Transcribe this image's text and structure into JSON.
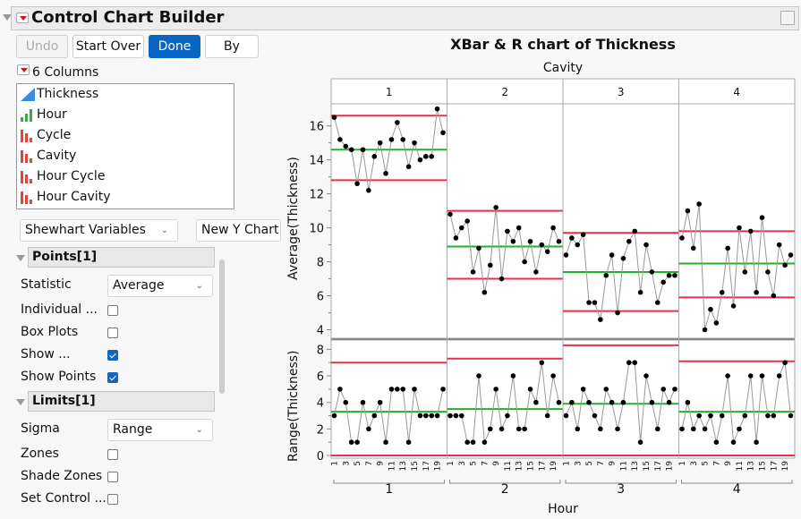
{
  "window": {
    "title": "Control Chart Builder"
  },
  "toolbar": {
    "undo": "Undo",
    "start_over": "Start Over",
    "done": "Done",
    "by": "By"
  },
  "columns": {
    "header": "6 Columns",
    "items": [
      {
        "label": "Thickness",
        "type": "continuous"
      },
      {
        "label": "Hour",
        "type": "ordinal"
      },
      {
        "label": "Cycle",
        "type": "nominal"
      },
      {
        "label": "Cavity",
        "type": "nominal"
      },
      {
        "label": "Hour Cycle",
        "type": "nominal"
      },
      {
        "label": "Hour Cavity",
        "type": "nominal"
      }
    ]
  },
  "chart_type": "Shewhart Variables",
  "new_y_chart": "New Y Chart",
  "points": {
    "header": "Points[1]",
    "statistic_label": "Statistic",
    "statistic_value": "Average",
    "options": [
      {
        "label": "Individual ...",
        "checked": false
      },
      {
        "label": "Box Plots",
        "checked": false
      },
      {
        "label": "Show ...",
        "checked": true
      },
      {
        "label": "Show Points",
        "checked": true
      }
    ]
  },
  "limits": {
    "header": "Limits[1]",
    "sigma_label": "Sigma",
    "sigma_value": "Range",
    "options": [
      {
        "label": "Zones",
        "checked": false
      },
      {
        "label": "Shade Zones",
        "checked": false
      },
      {
        "label": "Set Control ...",
        "checked": false
      }
    ]
  },
  "colors": {
    "ucl_lcl": "#e8304a",
    "center": "#22b02a",
    "points": "#000000",
    "lines": "#999999",
    "accent": "#0a66c2"
  },
  "chart_data": {
    "type": "line",
    "title": "XBar & R chart of Thickness",
    "group_label": "Cavity",
    "xlabel": "Hour",
    "x_ticks": [
      "1",
      "3",
      "5",
      "7",
      "9",
      "11",
      "13",
      "15",
      "17",
      "19"
    ],
    "groups": [
      "1",
      "2",
      "3",
      "4"
    ],
    "average": {
      "ylabel": "Average(Thickness)",
      "ylim": [
        3.5,
        17.3
      ],
      "yticks": [
        4,
        6,
        8,
        10,
        12,
        14,
        16
      ],
      "series": [
        {
          "values": [
            16.5,
            15.2,
            14.8,
            14.6,
            12.6,
            14.6,
            12.2,
            14.2,
            15.0,
            13.2,
            15.2,
            16.2,
            15.2,
            13.6,
            15.0,
            14.0,
            14.2,
            14.2,
            17.0,
            15.6
          ],
          "ucl": 16.6,
          "cl": 14.6,
          "lcl": 12.8
        },
        {
          "values": [
            10.8,
            9.4,
            10.0,
            10.4,
            7.4,
            8.8,
            6.2,
            7.8,
            11.2,
            7.0,
            9.8,
            9.2,
            10.0,
            8.0,
            9.2,
            7.4,
            9.0,
            8.6,
            10.0,
            9.2
          ],
          "ucl": 11.0,
          "cl": 8.9,
          "lcl": 7.0
        },
        {
          "values": [
            8.4,
            9.4,
            9.0,
            9.6,
            5.6,
            5.6,
            4.6,
            7.2,
            8.4,
            5.0,
            8.2,
            9.2,
            9.8,
            6.2,
            9.0,
            7.4,
            5.6,
            6.8,
            7.2,
            7.2
          ],
          "ucl": 9.7,
          "cl": 7.4,
          "lcl": 5.1
        },
        {
          "values": [
            9.4,
            11.0,
            8.8,
            11.4,
            4.0,
            5.2,
            4.4,
            6.2,
            8.8,
            5.4,
            10.0,
            7.4,
            9.8,
            6.2,
            10.6,
            7.4,
            6.0,
            9.0,
            7.8,
            8.4
          ],
          "ucl": 9.8,
          "cl": 7.9,
          "lcl": 5.9
        }
      ]
    },
    "range": {
      "ylabel": "Range(Thickness)",
      "ylim": [
        -0.2,
        8.7
      ],
      "yticks": [
        0,
        2,
        4,
        6,
        8
      ],
      "series": [
        {
          "values": [
            3,
            5,
            4,
            1,
            1,
            4,
            2,
            3,
            4,
            1,
            5,
            5,
            5,
            1,
            5,
            3,
            3,
            3,
            3,
            5
          ],
          "ucl": 7.0,
          "cl": 3.3,
          "lcl": 0
        },
        {
          "values": [
            3,
            3,
            3,
            1,
            1,
            6,
            1,
            2,
            5,
            2,
            3,
            6,
            2,
            2,
            5,
            4,
            7,
            3,
            6,
            4
          ],
          "ucl": 7.3,
          "cl": 3.5,
          "lcl": 0
        },
        {
          "values": [
            3,
            4,
            2,
            5,
            4,
            3,
            2,
            5,
            4,
            2,
            4,
            7,
            7,
            1,
            6,
            4,
            2,
            5,
            4,
            5
          ],
          "ucl": 8.3,
          "cl": 3.9,
          "lcl": 0
        },
        {
          "values": [
            2,
            4,
            2,
            3,
            2,
            3,
            1,
            3,
            6,
            1,
            2,
            3,
            6,
            1,
            6,
            3,
            3,
            6,
            7,
            3
          ],
          "ucl": 7.1,
          "cl": 3.3,
          "lcl": 0
        }
      ]
    }
  }
}
